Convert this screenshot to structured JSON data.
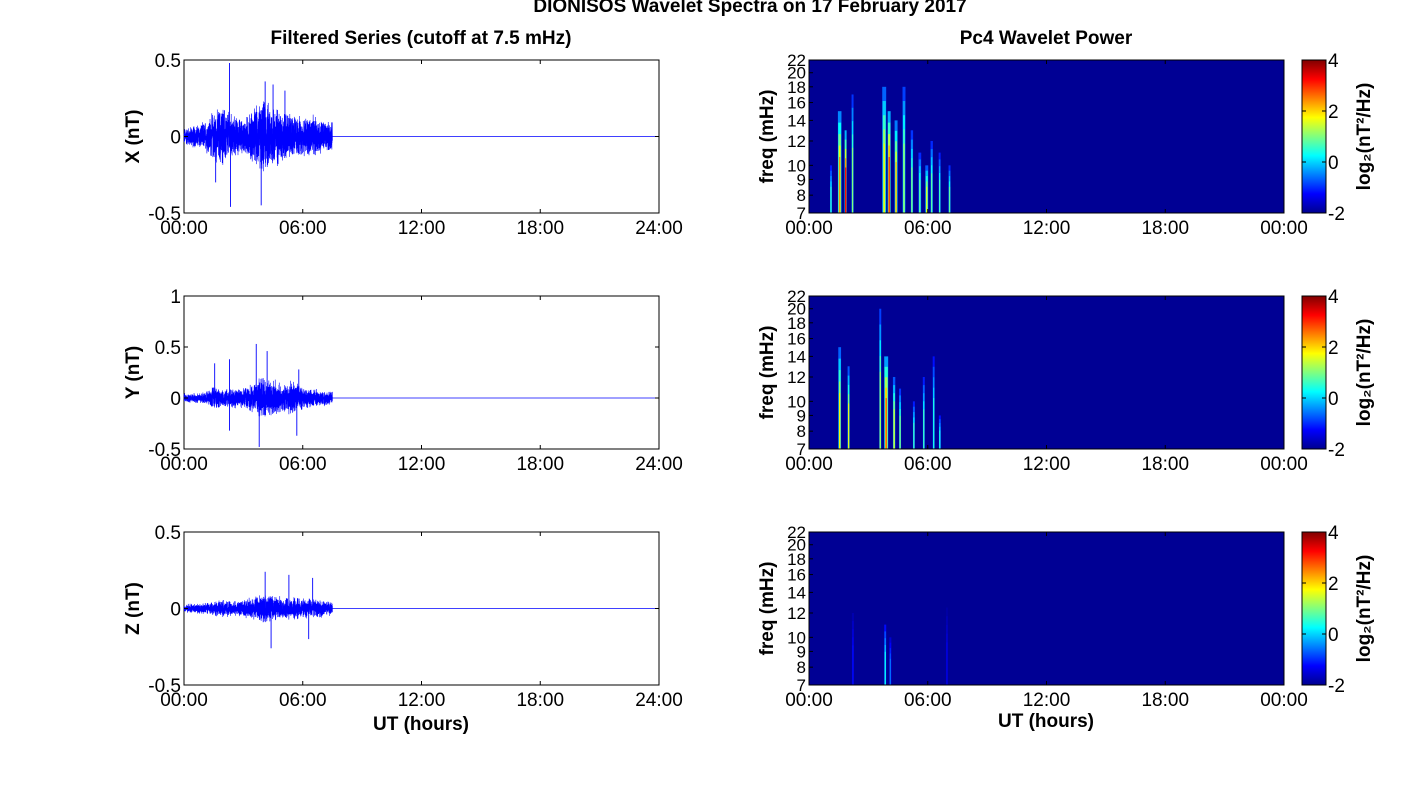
{
  "figure": {
    "title": "DIONISOS Wavelet Spectra on 17 February 2017",
    "left_title": "Filtered Series (cutoff at 7.5 mHz)",
    "right_title": "Pc4 Wavelet Power",
    "xlabel": "UT (hours)"
  },
  "chart_data": [
    {
      "type": "line",
      "component": "X",
      "ylabel": "X (nT)",
      "xlim": [
        0,
        24
      ],
      "ylim": [
        -0.5,
        0.5
      ],
      "yticks": [
        -0.5,
        0,
        0.5
      ],
      "xticks": [
        0,
        6,
        12,
        18,
        24
      ],
      "xtick_labels": [
        "00:00",
        "06:00",
        "12:00",
        "18:00",
        "24:00"
      ],
      "series_color": "#0000ff",
      "data_end_hour": 7.5,
      "envelope": [
        {
          "t": 0.0,
          "amp": 0.06
        },
        {
          "t": 0.5,
          "amp": 0.08
        },
        {
          "t": 1.0,
          "amp": 0.1
        },
        {
          "t": 1.5,
          "amp": 0.18
        },
        {
          "t": 2.0,
          "amp": 0.22
        },
        {
          "t": 2.5,
          "amp": 0.15
        },
        {
          "t": 3.0,
          "amp": 0.12
        },
        {
          "t": 3.5,
          "amp": 0.2
        },
        {
          "t": 4.0,
          "amp": 0.26
        },
        {
          "t": 4.5,
          "amp": 0.24
        },
        {
          "t": 5.0,
          "amp": 0.18
        },
        {
          "t": 5.5,
          "amp": 0.16
        },
        {
          "t": 6.0,
          "amp": 0.14
        },
        {
          "t": 6.5,
          "amp": 0.15
        },
        {
          "t": 7.0,
          "amp": 0.12
        },
        {
          "t": 7.5,
          "amp": 0.1
        }
      ],
      "spikes": [
        {
          "t": 1.6,
          "value": -0.3
        },
        {
          "t": 2.3,
          "value": 0.48
        },
        {
          "t": 2.35,
          "value": -0.46
        },
        {
          "t": 3.9,
          "value": -0.45
        },
        {
          "t": 4.1,
          "value": 0.36
        },
        {
          "t": 4.5,
          "value": 0.34
        },
        {
          "t": 5.1,
          "value": 0.3
        }
      ]
    },
    {
      "type": "line",
      "component": "Y",
      "ylabel": "Y (nT)",
      "xlim": [
        0,
        24
      ],
      "ylim": [
        -0.5,
        1
      ],
      "yticks": [
        -0.5,
        0,
        0.5,
        1
      ],
      "xticks": [
        0,
        6,
        12,
        18,
        24
      ],
      "xtick_labels": [
        "00:00",
        "06:00",
        "12:00",
        "18:00",
        "24:00"
      ],
      "series_color": "#0000ff",
      "data_end_hour": 7.5,
      "envelope": [
        {
          "t": 0.0,
          "amp": 0.05
        },
        {
          "t": 0.5,
          "amp": 0.05
        },
        {
          "t": 1.0,
          "amp": 0.06
        },
        {
          "t": 1.5,
          "amp": 0.12
        },
        {
          "t": 2.0,
          "amp": 0.1
        },
        {
          "t": 2.5,
          "amp": 0.12
        },
        {
          "t": 3.0,
          "amp": 0.1
        },
        {
          "t": 3.5,
          "amp": 0.16
        },
        {
          "t": 4.0,
          "amp": 0.22
        },
        {
          "t": 4.5,
          "amp": 0.2
        },
        {
          "t": 5.0,
          "amp": 0.14
        },
        {
          "t": 5.5,
          "amp": 0.18
        },
        {
          "t": 6.0,
          "amp": 0.12
        },
        {
          "t": 6.5,
          "amp": 0.1
        },
        {
          "t": 7.0,
          "amp": 0.09
        },
        {
          "t": 7.5,
          "amp": 0.07
        }
      ],
      "spikes": [
        {
          "t": 1.55,
          "value": 0.34
        },
        {
          "t": 2.3,
          "value": 0.38
        },
        {
          "t": 2.3,
          "value": -0.32
        },
        {
          "t": 3.65,
          "value": 0.53
        },
        {
          "t": 3.8,
          "value": -0.48
        },
        {
          "t": 4.2,
          "value": 0.46
        },
        {
          "t": 5.7,
          "value": -0.37
        },
        {
          "t": 5.8,
          "value": 0.28
        }
      ]
    },
    {
      "type": "line",
      "component": "Z",
      "ylabel": "Z (nT)",
      "xlim": [
        0,
        24
      ],
      "ylim": [
        -0.5,
        0.5
      ],
      "yticks": [
        -0.5,
        0,
        0.5
      ],
      "xticks": [
        0,
        6,
        12,
        18,
        24
      ],
      "xtick_labels": [
        "00:00",
        "06:00",
        "12:00",
        "18:00",
        "24:00"
      ],
      "series_color": "#0000ff",
      "data_end_hour": 7.5,
      "envelope": [
        {
          "t": 0.0,
          "amp": 0.03
        },
        {
          "t": 0.5,
          "amp": 0.035
        },
        {
          "t": 1.0,
          "amp": 0.04
        },
        {
          "t": 1.5,
          "amp": 0.05
        },
        {
          "t": 2.0,
          "amp": 0.06
        },
        {
          "t": 2.5,
          "amp": 0.05
        },
        {
          "t": 3.0,
          "amp": 0.06
        },
        {
          "t": 3.5,
          "amp": 0.08
        },
        {
          "t": 4.0,
          "amp": 0.1
        },
        {
          "t": 4.5,
          "amp": 0.09
        },
        {
          "t": 5.0,
          "amp": 0.08
        },
        {
          "t": 5.5,
          "amp": 0.08
        },
        {
          "t": 6.0,
          "amp": 0.07
        },
        {
          "t": 6.5,
          "amp": 0.07
        },
        {
          "t": 7.0,
          "amp": 0.06
        },
        {
          "t": 7.5,
          "amp": 0.05
        }
      ],
      "spikes": [
        {
          "t": 4.1,
          "value": 0.24
        },
        {
          "t": 4.4,
          "value": -0.26
        },
        {
          "t": 5.3,
          "value": 0.22
        },
        {
          "t": 6.3,
          "value": -0.2
        },
        {
          "t": 6.5,
          "value": 0.2
        }
      ]
    },
    {
      "type": "heatmap",
      "component": "X",
      "ylabel": "freq (mHz)",
      "xlim": [
        0,
        24
      ],
      "ylim": [
        7,
        22
      ],
      "yticks": [
        7,
        8,
        9,
        10,
        12,
        14,
        16,
        18,
        20,
        22
      ],
      "xticks": [
        0,
        6,
        12,
        18,
        24
      ],
      "xtick_labels": [
        "00:00",
        "06:00",
        "12:00",
        "18:00",
        "00:00"
      ],
      "colorbar_label": "log₂(nT²/Hz)",
      "clim": [
        -2,
        4
      ],
      "colorbar_ticks": [
        -2,
        0,
        2,
        4
      ],
      "colormap": "jet",
      "background_value": -2,
      "bursts": [
        {
          "t": 1.1,
          "width_h": 0.08,
          "f_top": 10,
          "peak": 0.5
        },
        {
          "t": 1.55,
          "width_h": 0.18,
          "f_top": 15,
          "peak": 2.4
        },
        {
          "t": 1.85,
          "width_h": 0.1,
          "f_top": 13,
          "peak": 3.2
        },
        {
          "t": 2.2,
          "width_h": 0.1,
          "f_top": 17,
          "peak": 1.0
        },
        {
          "t": 3.8,
          "width_h": 0.2,
          "f_top": 18,
          "peak": 1.8
        },
        {
          "t": 4.05,
          "width_h": 0.15,
          "f_top": 15,
          "peak": 3.0
        },
        {
          "t": 4.4,
          "width_h": 0.15,
          "f_top": 14,
          "peak": 2.2
        },
        {
          "t": 4.8,
          "width_h": 0.15,
          "f_top": 18,
          "peak": 1.2
        },
        {
          "t": 5.2,
          "width_h": 0.12,
          "f_top": 13,
          "peak": 1.0
        },
        {
          "t": 5.6,
          "width_h": 0.14,
          "f_top": 11,
          "peak": 0.8
        },
        {
          "t": 5.95,
          "width_h": 0.15,
          "f_top": 10,
          "peak": 1.6
        },
        {
          "t": 6.2,
          "width_h": 0.12,
          "f_top": 12,
          "peak": 0.8
        },
        {
          "t": 6.6,
          "width_h": 0.1,
          "f_top": 11,
          "peak": 0.6
        },
        {
          "t": 7.1,
          "width_h": 0.1,
          "f_top": 10,
          "peak": 0.8
        }
      ]
    },
    {
      "type": "heatmap",
      "component": "Y",
      "ylabel": "freq (mHz)",
      "xlim": [
        0,
        24
      ],
      "ylim": [
        7,
        22
      ],
      "yticks": [
        7,
        8,
        9,
        10,
        12,
        14,
        16,
        18,
        20,
        22
      ],
      "xticks": [
        0,
        6,
        12,
        18,
        24
      ],
      "xtick_labels": [
        "00:00",
        "06:00",
        "12:00",
        "18:00",
        "00:00"
      ],
      "colorbar_label": "log₂(nT²/Hz)",
      "clim": [
        -2,
        4
      ],
      "colorbar_ticks": [
        -2,
        0,
        2,
        4
      ],
      "colormap": "jet",
      "background_value": -2,
      "bursts": [
        {
          "t": 1.55,
          "width_h": 0.14,
          "f_top": 15,
          "peak": 1.8
        },
        {
          "t": 2.0,
          "width_h": 0.1,
          "f_top": 13,
          "peak": 1.6
        },
        {
          "t": 3.6,
          "width_h": 0.1,
          "f_top": 20,
          "peak": 1.2
        },
        {
          "t": 3.9,
          "width_h": 0.2,
          "f_top": 14,
          "peak": 2.8
        },
        {
          "t": 4.3,
          "width_h": 0.12,
          "f_top": 12,
          "peak": 1.6
        },
        {
          "t": 4.6,
          "width_h": 0.1,
          "f_top": 11,
          "peak": 1.0
        },
        {
          "t": 5.3,
          "width_h": 0.1,
          "f_top": 10,
          "peak": 0.6
        },
        {
          "t": 5.8,
          "width_h": 0.1,
          "f_top": 12,
          "peak": 0.6
        },
        {
          "t": 6.3,
          "width_h": 0.1,
          "f_top": 14,
          "peak": 0.4
        },
        {
          "t": 6.6,
          "width_h": 0.08,
          "f_top": 9,
          "peak": 0.4
        }
      ]
    },
    {
      "type": "heatmap",
      "component": "Z",
      "ylabel": "freq (mHz)",
      "xlim": [
        0,
        24
      ],
      "ylim": [
        7,
        22
      ],
      "yticks": [
        7,
        8,
        9,
        10,
        12,
        14,
        16,
        18,
        20,
        22
      ],
      "xticks": [
        0,
        6,
        12,
        18,
        24
      ],
      "xtick_labels": [
        "00:00",
        "06:00",
        "12:00",
        "18:00",
        "00:00"
      ],
      "colorbar_label": "log₂(nT²/Hz)",
      "clim": [
        -2,
        4
      ],
      "colorbar_ticks": [
        -2,
        0,
        2,
        4
      ],
      "colormap": "jet",
      "background_value": -2,
      "bursts": [
        {
          "t": 2.2,
          "width_h": 0.06,
          "f_top": 12,
          "peak": -1.2
        },
        {
          "t": 3.85,
          "width_h": 0.1,
          "f_top": 11,
          "peak": 0.3
        },
        {
          "t": 4.1,
          "width_h": 0.08,
          "f_top": 10,
          "peak": -0.6
        },
        {
          "t": 6.95,
          "width_h": 0.06,
          "f_top": 12.5,
          "peak": -1.4
        }
      ]
    }
  ]
}
